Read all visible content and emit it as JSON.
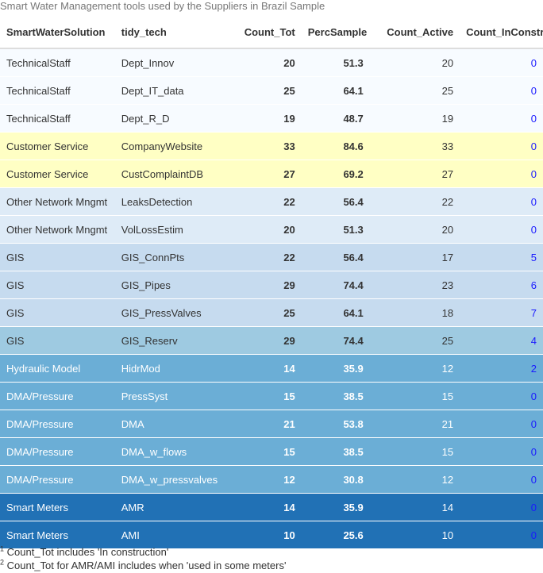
{
  "caption": "Smart Water Management tools used by the Suppliers in Brazil Sample",
  "columns": [
    "SmartWaterSolution",
    "tidy_tech",
    "Count_Tot",
    "PercSample",
    "Count_Active",
    "Count_InConstr"
  ],
  "colors": {
    "text_dark": "#333333",
    "text_light": "#ffffff",
    "link_blue": "#1a1aff"
  },
  "rows": [
    {
      "solution": "TechnicalStaff",
      "tech": "Dept_Innov",
      "count_tot": "20",
      "perc": "51.3",
      "count_active": "20",
      "count_inconstr": "0",
      "bg": "#f7fbff",
      "fg": "#333333"
    },
    {
      "solution": "TechnicalStaff",
      "tech": "Dept_IT_data",
      "count_tot": "25",
      "perc": "64.1",
      "count_active": "25",
      "count_inconstr": "0",
      "bg": "#f7fbff",
      "fg": "#333333"
    },
    {
      "solution": "TechnicalStaff",
      "tech": "Dept_R_D",
      "count_tot": "19",
      "perc": "48.7",
      "count_active": "19",
      "count_inconstr": "0",
      "bg": "#f7fbff",
      "fg": "#333333"
    },
    {
      "solution": "Customer Service",
      "tech": "CompanyWebsite",
      "count_tot": "33",
      "perc": "84.6",
      "count_active": "33",
      "count_inconstr": "0",
      "bg": "#ffffc4",
      "fg": "#333333"
    },
    {
      "solution": "Customer Service",
      "tech": "CustComplaintDB",
      "count_tot": "27",
      "perc": "69.2",
      "count_active": "27",
      "count_inconstr": "0",
      "bg": "#ffffc4",
      "fg": "#333333"
    },
    {
      "solution": "Other Network Mngmt",
      "tech": "LeaksDetection",
      "count_tot": "22",
      "perc": "56.4",
      "count_active": "22",
      "count_inconstr": "0",
      "bg": "#deebf7",
      "fg": "#333333"
    },
    {
      "solution": "Other Network Mngmt",
      "tech": "VolLossEstim",
      "count_tot": "20",
      "perc": "51.3",
      "count_active": "20",
      "count_inconstr": "0",
      "bg": "#deebf7",
      "fg": "#333333"
    },
    {
      "solution": "GIS",
      "tech": "GIS_ConnPts",
      "count_tot": "22",
      "perc": "56.4",
      "count_active": "17",
      "count_inconstr": "5",
      "bg": "#c6dbef",
      "fg": "#333333"
    },
    {
      "solution": "GIS",
      "tech": "GIS_Pipes",
      "count_tot": "29",
      "perc": "74.4",
      "count_active": "23",
      "count_inconstr": "6",
      "bg": "#c6dbef",
      "fg": "#333333"
    },
    {
      "solution": "GIS",
      "tech": "GIS_PressValves",
      "count_tot": "25",
      "perc": "64.1",
      "count_active": "18",
      "count_inconstr": "7",
      "bg": "#c6dbef",
      "fg": "#333333"
    },
    {
      "solution": "GIS",
      "tech": "GIS_Reserv",
      "count_tot": "29",
      "perc": "74.4",
      "count_active": "25",
      "count_inconstr": "4",
      "bg": "#9ecae1",
      "fg": "#333333"
    },
    {
      "solution": "Hydraulic Model",
      "tech": "HidrMod",
      "count_tot": "14",
      "perc": "35.9",
      "count_active": "12",
      "count_inconstr": "2",
      "bg": "#6baed6",
      "fg": "#ffffff"
    },
    {
      "solution": "DMA/Pressure",
      "tech": "PressSyst",
      "count_tot": "15",
      "perc": "38.5",
      "count_active": "15",
      "count_inconstr": "0",
      "bg": "#6baed6",
      "fg": "#ffffff"
    },
    {
      "solution": "DMA/Pressure",
      "tech": "DMA",
      "count_tot": "21",
      "perc": "53.8",
      "count_active": "21",
      "count_inconstr": "0",
      "bg": "#6baed6",
      "fg": "#ffffff"
    },
    {
      "solution": "DMA/Pressure",
      "tech": "DMA_w_flows",
      "count_tot": "15",
      "perc": "38.5",
      "count_active": "15",
      "count_inconstr": "0",
      "bg": "#6baed6",
      "fg": "#ffffff"
    },
    {
      "solution": "DMA/Pressure",
      "tech": "DMA_w_pressvalves",
      "count_tot": "12",
      "perc": "30.8",
      "count_active": "12",
      "count_inconstr": "0",
      "bg": "#6baed6",
      "fg": "#ffffff"
    },
    {
      "solution": "Smart Meters",
      "tech": "AMR",
      "count_tot": "14",
      "perc": "35.9",
      "count_active": "14",
      "count_inconstr": "0",
      "bg": "#2171b5",
      "fg": "#ffffff"
    },
    {
      "solution": "Smart Meters",
      "tech": "AMI",
      "count_tot": "10",
      "perc": "25.6",
      "count_active": "10",
      "count_inconstr": "0",
      "bg": "#2171b5",
      "fg": "#ffffff"
    }
  ],
  "footnotes": [
    {
      "mark": "1",
      "text": "Count_Tot includes 'In construction'"
    },
    {
      "mark": "2",
      "text": "Count_Tot for AMR/AMI includes when 'used in some meters'"
    }
  ]
}
